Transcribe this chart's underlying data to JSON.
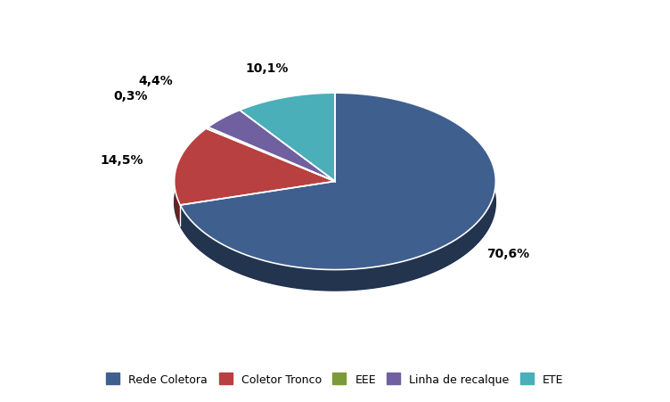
{
  "labels": [
    "Rede Coletora",
    "Coletor Tronco",
    "EEE",
    "Linha de recalque",
    "ETE"
  ],
  "values": [
    70.6,
    14.5,
    0.3,
    4.4,
    10.1
  ],
  "colors": [
    "#3F5F8F",
    "#B94040",
    "#7B9B3A",
    "#7060A0",
    "#4AAFB8"
  ],
  "shadow_color": "#1A2E50",
  "pct_labels": [
    "70,6%",
    "14,5%",
    "0,3%",
    "4,4%",
    "10,1%"
  ],
  "background_color": "#ffffff",
  "legend_fontsize": 10,
  "startangle": 90
}
